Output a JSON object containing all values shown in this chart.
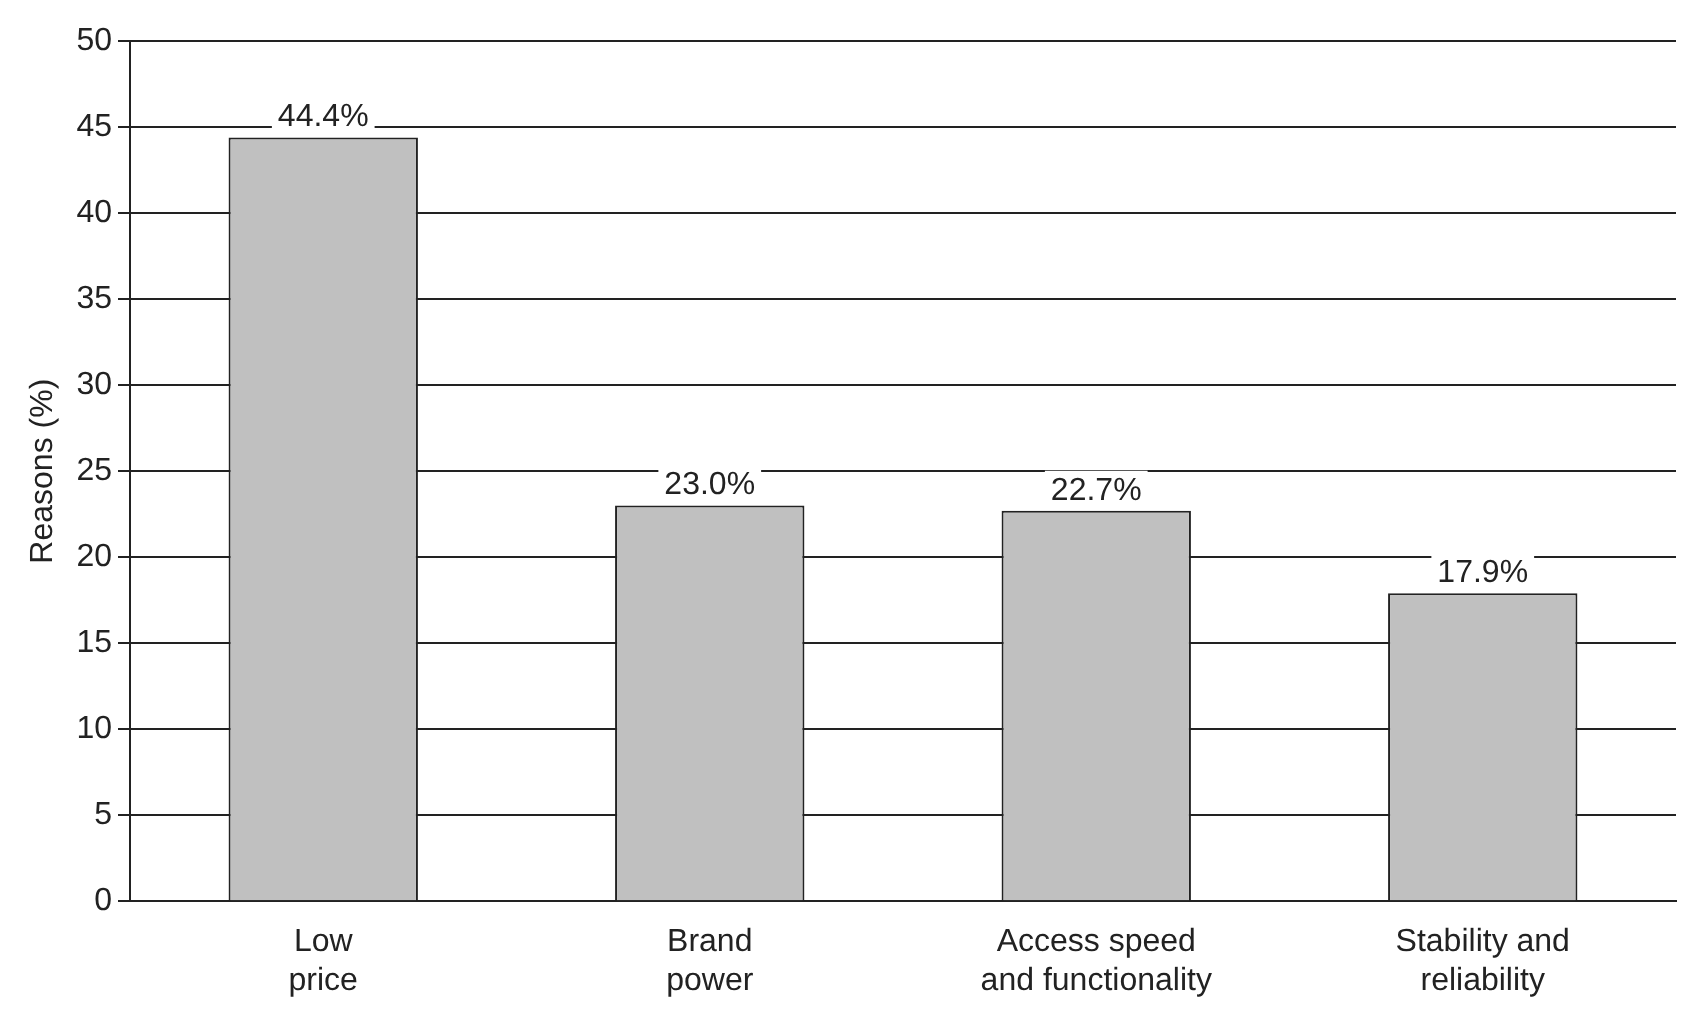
{
  "chart_data": {
    "type": "bar",
    "ylabel": "Reasons (%)",
    "categories": [
      "Low price",
      "Brand power",
      "Access speed and functionality",
      "Stability and reliability"
    ],
    "values": [
      44.4,
      23.0,
      22.7,
      17.9
    ],
    "value_labels": [
      "44.4%",
      "23.0%",
      "22.7%",
      "17.9%"
    ],
    "color": "#c0c0c0",
    "ylim": [
      0,
      50
    ],
    "yticks": [
      0,
      5,
      10,
      15,
      20,
      25,
      30,
      35,
      40,
      45,
      50
    ],
    "grid": "y",
    "legend": false
  }
}
